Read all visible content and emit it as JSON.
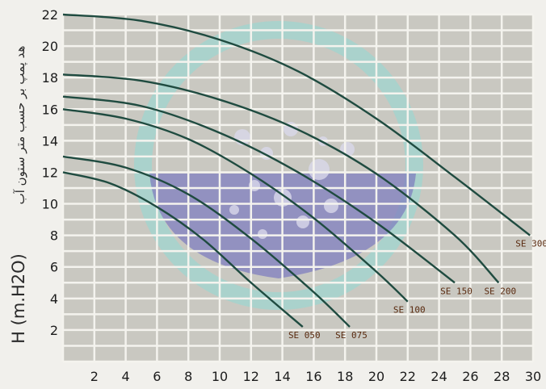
{
  "chart_data": {
    "type": "line",
    "title": "",
    "xlabel": "",
    "ylabel": "H (m.H2O)",
    "ylabel_fa": "هد پمپ بر حسب متر ستون آب",
    "xlim": [
      0,
      30
    ],
    "ylim": [
      0,
      22
    ],
    "x_ticks": [
      2,
      4,
      6,
      8,
      10,
      12,
      14,
      16,
      18,
      20,
      22,
      24,
      26,
      28,
      30
    ],
    "y_ticks": [
      2,
      4,
      6,
      8,
      10,
      12,
      14,
      16,
      18,
      20,
      22
    ],
    "grid": true,
    "series": [
      {
        "name": "SE 050",
        "color": "#1f4b40",
        "x": [
          0,
          3,
          6,
          9,
          12,
          15.3
        ],
        "y": [
          12,
          11.3,
          9.8,
          7.7,
          5.0,
          2.2
        ]
      },
      {
        "name": "SE 075",
        "color": "#1f4b40",
        "x": [
          0,
          4,
          8,
          12,
          16,
          18.3
        ],
        "y": [
          13,
          12.3,
          10.6,
          7.8,
          4.4,
          2.2
        ]
      },
      {
        "name": "SE 100",
        "color": "#1f4b40",
        "x": [
          0,
          4,
          8,
          12,
          16,
          20,
          22
        ],
        "y": [
          16,
          15.4,
          14.1,
          11.9,
          9.1,
          5.7,
          3.8
        ]
      },
      {
        "name": "SE 150",
        "color": "#1f4b40",
        "x": [
          0,
          5,
          10,
          15,
          20,
          25
        ],
        "y": [
          16.8,
          16.2,
          14.5,
          12.0,
          8.8,
          5.0
        ]
      },
      {
        "name": "SE 200",
        "color": "#1f4b40",
        "x": [
          0,
          5,
          10,
          15,
          20,
          25,
          27.8
        ],
        "y": [
          18.2,
          17.8,
          16.6,
          14.7,
          11.9,
          8.0,
          5.0
        ]
      },
      {
        "name": "SE 300",
        "color": "#1f4b40",
        "x": [
          0,
          5,
          10,
          15,
          20,
          25,
          29.8
        ],
        "y": [
          22,
          21.6,
          20.4,
          18.4,
          15.4,
          11.7,
          8.0
        ]
      }
    ],
    "colors": {
      "background": "#c9c8c1",
      "grid": "#f4f3ee",
      "curve": "#1f4b40",
      "label": "#5a2b10",
      "ring": "#9fd6cf",
      "water": "#7f7fbf"
    }
  }
}
